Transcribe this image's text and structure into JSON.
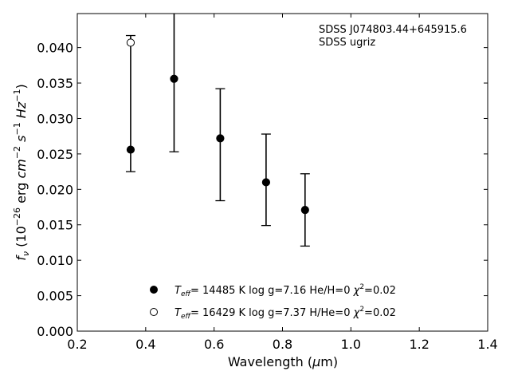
{
  "chart_data": {
    "type": "scatter",
    "annotation": [
      "SDSS J074803.44+645915.6",
      "SDSS ugriz"
    ],
    "xlabel": "Wavelength (μm)",
    "ylabel": "fν (10⁻²⁶ erg cm⁻² s⁻¹ Hz⁻¹)",
    "xlim": [
      0.2,
      1.4
    ],
    "ylim": [
      0.0,
      0.0448
    ],
    "xticks": [
      "0.2",
      "0.4",
      "0.6",
      "0.8",
      "1.0",
      "1.2",
      "1.4"
    ],
    "yticks": [
      "0.000",
      "0.005",
      "0.010",
      "0.015",
      "0.020",
      "0.025",
      "0.030",
      "0.035",
      "0.040"
    ],
    "grid": false,
    "legend_position": "bottom-center",
    "observed": {
      "x": [
        0.356,
        0.483,
        0.618,
        0.752,
        0.866
      ],
      "y": [
        0.0256,
        0.0356,
        0.0272,
        0.021,
        0.0171
      ],
      "ylow": [
        0.0225,
        0.0253,
        0.0184,
        0.0149,
        0.012
      ],
      "yhigh": [
        0.0417,
        0.046,
        0.0342,
        0.0278,
        0.0222
      ]
    },
    "series": [
      {
        "name": "T_eff= 14485 K  log g=7.16  He/H=0  χ²=0.02",
        "marker": "filled-circle",
        "x": [
          0.356,
          0.483,
          0.618,
          0.752,
          0.866
        ],
        "y": [
          0.0256,
          0.0356,
          0.0272,
          0.021,
          0.0171
        ]
      },
      {
        "name": "T_eff= 16429 K  log g=7.37  H/He=0  χ²=0.02",
        "marker": "open-circle",
        "x": [
          0.356
        ],
        "y": [
          0.0407
        ]
      }
    ],
    "legend": [
      {
        "teff": "14485",
        "logg": "7.16",
        "comp": "He/H=0",
        "chi": "0.02",
        "marker": "filled"
      },
      {
        "teff": "16429",
        "logg": "7.37",
        "comp": "H/He=0",
        "chi": "0.02",
        "marker": "open"
      }
    ]
  }
}
